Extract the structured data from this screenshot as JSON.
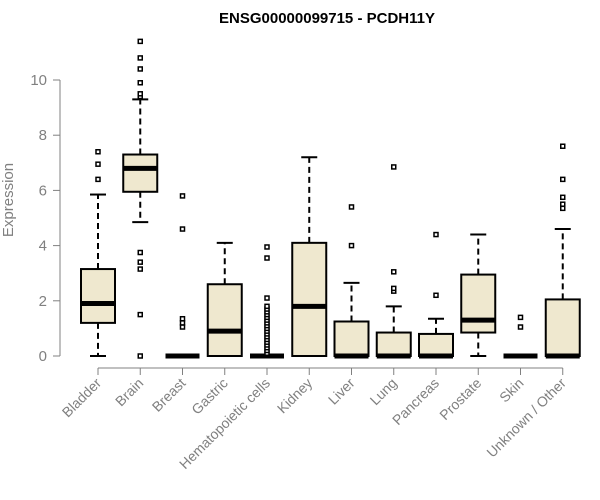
{
  "chart_data": {
    "type": "boxplot",
    "title": "ENSG00000099715 - PCDH11Y",
    "xlabel": "",
    "ylabel": "Expression",
    "ylim": [
      0,
      11.5
    ],
    "yticks": [
      0,
      2,
      4,
      6,
      8,
      10
    ],
    "colors": {
      "box_fill": "#efe8cf",
      "stroke": "#000000",
      "axis": "#808080",
      "text": "#808080"
    },
    "categories": [
      "Bladder",
      "Brain",
      "Breast",
      "Gastric",
      "Hematopoietic cells",
      "Kidney",
      "Liver",
      "Lung",
      "Pancreas",
      "Prostate",
      "Skin",
      "Unknown / Other"
    ],
    "boxes": [
      {
        "name": "Bladder",
        "whisker_low": 0,
        "q1": 1.2,
        "median": 1.9,
        "q3": 3.15,
        "whisker_high": 5.85,
        "outliers": [
          6.4,
          6.95,
          7.4
        ]
      },
      {
        "name": "Brain",
        "whisker_low": 4.85,
        "q1": 5.95,
        "median": 6.8,
        "q3": 7.3,
        "whisker_high": 9.3,
        "outliers": [
          0.0,
          1.5,
          3.15,
          3.4,
          3.75,
          9.4,
          9.5,
          9.9,
          10.4,
          10.8,
          11.4
        ]
      },
      {
        "name": "Breast",
        "whisker_low": 0,
        "q1": 0,
        "median": 0,
        "q3": 0,
        "whisker_high": 0,
        "outliers": [
          1.05,
          1.2,
          1.35,
          4.6,
          5.8
        ]
      },
      {
        "name": "Gastric",
        "whisker_low": 0,
        "q1": 0,
        "median": 0.9,
        "q3": 2.6,
        "whisker_high": 4.1,
        "outliers": []
      },
      {
        "name": "Hematopoietic cells",
        "whisker_low": 0,
        "q1": 0,
        "median": 0,
        "q3": 0,
        "whisker_high": 0,
        "outliers": [
          0.1,
          0.2,
          0.3,
          0.4,
          0.5,
          0.6,
          0.7,
          0.8,
          0.9,
          1.0,
          1.1,
          1.2,
          1.3,
          1.4,
          1.5,
          1.6,
          1.7,
          1.8,
          2.1,
          3.55,
          3.95
        ]
      },
      {
        "name": "Kidney",
        "whisker_low": 0,
        "q1": 0,
        "median": 1.8,
        "q3": 4.1,
        "whisker_high": 7.2,
        "outliers": []
      },
      {
        "name": "Liver",
        "whisker_low": 0,
        "q1": 0,
        "median": 0,
        "q3": 1.25,
        "whisker_high": 2.65,
        "outliers": [
          4.0,
          5.4
        ]
      },
      {
        "name": "Lung",
        "whisker_low": 0,
        "q1": 0,
        "median": 0,
        "q3": 0.85,
        "whisker_high": 1.8,
        "outliers": [
          2.35,
          2.45,
          3.05,
          6.85
        ]
      },
      {
        "name": "Pancreas",
        "whisker_low": 0,
        "q1": 0,
        "median": 0,
        "q3": 0.8,
        "whisker_high": 1.35,
        "outliers": [
          2.2,
          4.4
        ]
      },
      {
        "name": "Prostate",
        "whisker_low": 0,
        "q1": 0.85,
        "median": 1.3,
        "q3": 2.95,
        "whisker_high": 4.4,
        "outliers": []
      },
      {
        "name": "Skin",
        "whisker_low": 0,
        "q1": 0,
        "median": 0,
        "q3": 0,
        "whisker_high": 0,
        "outliers": [
          1.05,
          1.4
        ]
      },
      {
        "name": "Unknown / Other",
        "whisker_low": 0,
        "q1": 0,
        "median": 0,
        "q3": 2.05,
        "whisker_high": 4.6,
        "outliers": [
          5.35,
          5.5,
          5.75,
          6.4,
          7.6
        ]
      }
    ]
  }
}
